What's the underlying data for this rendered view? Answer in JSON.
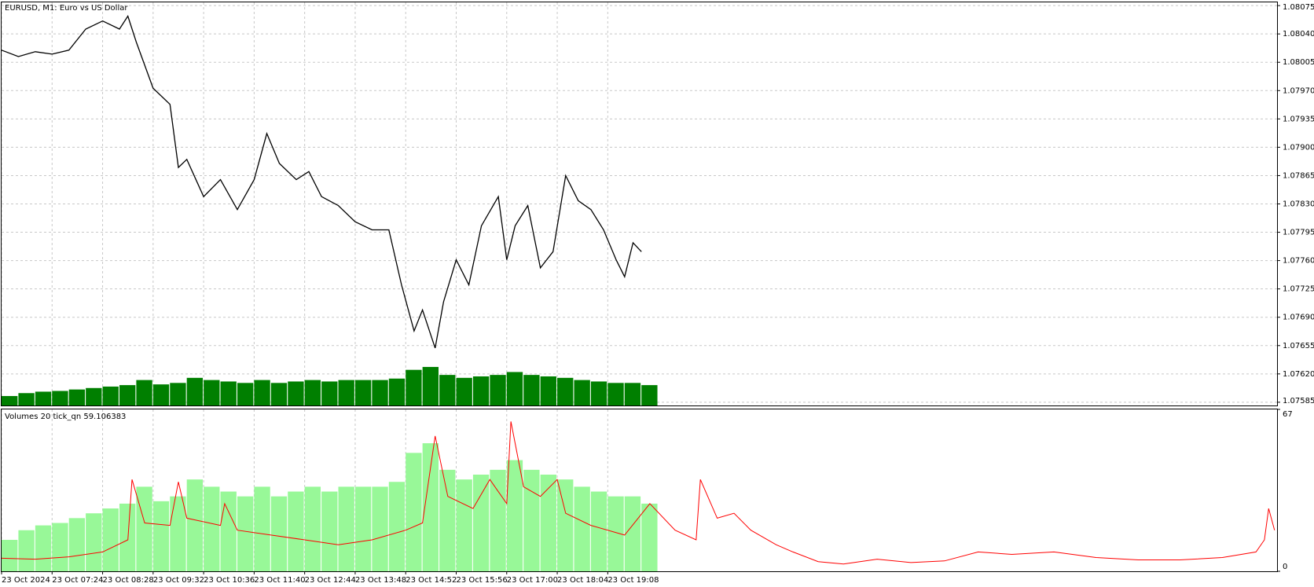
{
  "chart_data": [
    {
      "type": "line",
      "title": "EURUSD, M1:  Euro vs US Dollar",
      "x": [
        0,
        20,
        40,
        60,
        80,
        100,
        120,
        140,
        150,
        160,
        180,
        200,
        210,
        220,
        240,
        260,
        280,
        300,
        315,
        330,
        350,
        365,
        380,
        400,
        420,
        440,
        460,
        475,
        490,
        500,
        515,
        525,
        540,
        555,
        570,
        590,
        600,
        610,
        625,
        640,
        655,
        670,
        685,
        700,
        715,
        730,
        740,
        750,
        760
      ],
      "values": [
        1.0802,
        1.08012,
        1.08018,
        1.08015,
        1.0802,
        1.08046,
        1.08056,
        1.08046,
        1.08062,
        1.0803,
        1.07973,
        1.07953,
        1.07875,
        1.07885,
        1.07839,
        1.0786,
        1.07823,
        1.0786,
        1.07917,
        1.0788,
        1.0786,
        1.0787,
        1.07839,
        1.07828,
        1.07808,
        1.07798,
        1.07798,
        1.0773,
        1.07673,
        1.07699,
        1.07652,
        1.07709,
        1.07761,
        1.0773,
        1.07803,
        1.07839,
        1.07761,
        1.07803,
        1.07828,
        1.07751,
        1.07771,
        1.07865,
        1.07834,
        1.07823,
        1.07798,
        1.07761,
        1.0774,
        1.07782,
        1.07771
      ],
      "color": "#000000",
      "volume_color": "#007f00",
      "xlim": [
        0,
        1515
      ],
      "ylim": [
        1.07581,
        1.08079
      ],
      "yticks": [
        1.08075,
        {
          "value": 1.0804,
          "label": "1.08040"
        },
        1.08005,
        {
          "value": 1.0797,
          "label": "1.07970"
        },
        1.07935,
        {
          "value": 1.079,
          "label": "1.07900"
        },
        1.07865,
        {
          "value": 1.0783,
          "label": "1.07830"
        },
        1.07795,
        {
          "value": 1.0776,
          "label": "1.07760"
        },
        1.07725,
        {
          "value": 1.0769,
          "label": "1.07690"
        },
        1.07655,
        {
          "value": 1.0762,
          "label": "1.07620"
        },
        1.07585
      ],
      "grid": true
    },
    {
      "type": "volume",
      "title": "Volumes 20 tick_qn 59.106383",
      "bars": {
        "color": "#98f898",
        "x": [
          0,
          20,
          40,
          60,
          80,
          100,
          120,
          140,
          160,
          180,
          200,
          220,
          240,
          260,
          280,
          300,
          320,
          340,
          360,
          380,
          400,
          420,
          440,
          460,
          480,
          500,
          520,
          540,
          560,
          580,
          600,
          620,
          640,
          660,
          680,
          700,
          720,
          740,
          760
        ],
        "values": [
          13,
          17,
          19,
          20,
          22,
          24,
          26,
          28,
          35,
          29,
          31,
          38,
          35,
          33,
          31,
          35,
          31,
          33,
          35,
          33,
          35,
          35,
          35,
          37,
          49,
          53,
          42,
          38,
          40,
          42,
          46,
          42,
          40,
          38,
          35,
          33,
          31,
          31,
          28
        ]
      },
      "line": {
        "color": "#ff0000",
        "x": [
          0,
          40,
          80,
          120,
          150,
          155,
          170,
          200,
          210,
          220,
          260,
          265,
          280,
          320,
          360,
          400,
          440,
          480,
          500,
          515,
          530,
          560,
          580,
          600,
          605,
          620,
          640,
          660,
          670,
          700,
          740,
          770,
          800,
          825,
          830,
          850,
          870,
          890,
          920,
          940,
          970,
          1000,
          1040,
          1080,
          1120,
          1160,
          1200,
          1250,
          1300,
          1350,
          1400,
          1450,
          1490,
          1500,
          1505,
          1512
        ],
        "values": [
          5.4,
          5,
          6,
          8,
          13,
          38,
          20,
          19,
          37,
          22,
          19,
          28,
          17,
          15,
          13,
          11,
          13,
          17,
          20,
          56,
          31,
          26,
          38,
          28,
          62,
          35,
          31,
          38,
          24,
          19,
          15,
          28,
          17,
          13,
          38,
          22,
          24,
          17,
          11,
          8,
          4,
          3,
          5,
          3.6,
          4.3,
          8,
          7,
          8,
          5.7,
          4.7,
          4.7,
          5.7,
          8,
          13,
          26,
          17
        ]
      },
      "xlim": [
        0,
        1515
      ],
      "ylim": [
        0,
        67
      ],
      "yticks": [
        0,
        67
      ],
      "xticks": [
        {
          "value": 0,
          "label": "23 Oct 2024"
        },
        {
          "value": 60,
          "label": "23 Oct 07:24"
        },
        {
          "value": 120,
          "label": "23 Oct 08:28"
        },
        {
          "value": 180,
          "label": "23 Oct 09:32"
        },
        {
          "value": 240,
          "label": "23 Oct 10:36"
        },
        {
          "value": 300,
          "label": "23 Oct 11:40"
        },
        {
          "value": 360,
          "label": "23 Oct 12:44"
        },
        {
          "value": 420,
          "label": "23 Oct 13:48"
        },
        {
          "value": 480,
          "label": "23 Oct 14:52"
        },
        {
          "value": 540,
          "label": "23 Oct 15:56"
        },
        {
          "value": 600,
          "label": "23 Oct 17:00"
        },
        {
          "value": 660,
          "label": "23 Oct 18:04"
        },
        {
          "value": 720,
          "label": "23 Oct 19:08"
        }
      ],
      "grid": true
    }
  ]
}
